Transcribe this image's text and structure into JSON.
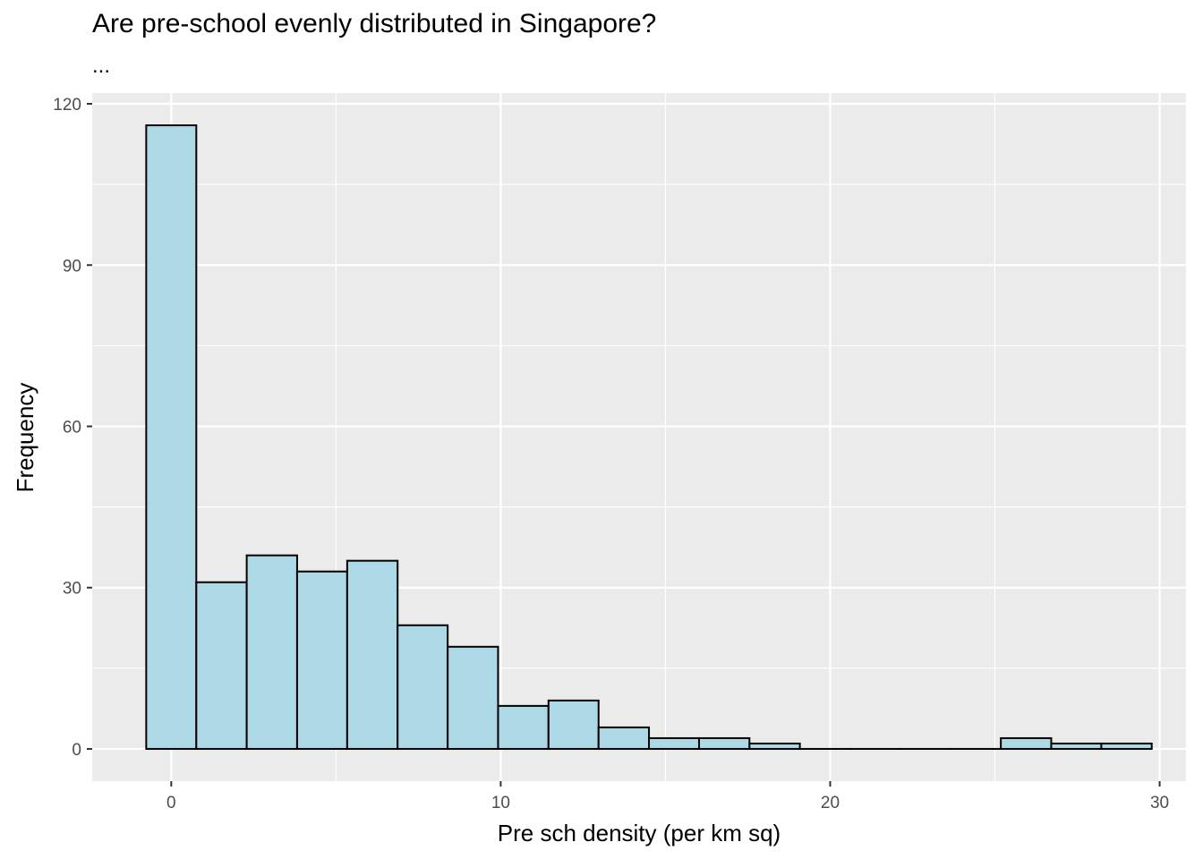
{
  "chart_data": {
    "type": "bar",
    "subtype": "histogram",
    "title": "Are pre-school evenly distributed in Singapore?",
    "subtitle": "...",
    "xlabel": "Pre sch density (per km sq)",
    "ylabel": "Frequency",
    "xlim": [
      -2.4,
      30.8
    ],
    "ylim": [
      -6,
      122
    ],
    "xticks": [
      0,
      10,
      20,
      30
    ],
    "yticks": [
      0,
      30,
      60,
      90,
      120
    ],
    "grid": true,
    "bin_edges": [
      -0.76,
      0.76,
      2.29,
      3.82,
      5.34,
      6.87,
      8.39,
      9.92,
      11.45,
      12.97,
      14.5,
      16.02,
      17.55,
      19.08,
      20.6,
      22.13,
      23.65,
      25.18,
      26.71,
      28.23,
      29.76
    ],
    "values": [
      116,
      31,
      36,
      33,
      35,
      23,
      19,
      8,
      9,
      4,
      2,
      2,
      1,
      0,
      0,
      0,
      0,
      2,
      1,
      1
    ],
    "bar_fill": "#add8e6",
    "bar_stroke": "#000000",
    "panel_background": "#ebebeb",
    "grid_color": "#ffffff"
  }
}
